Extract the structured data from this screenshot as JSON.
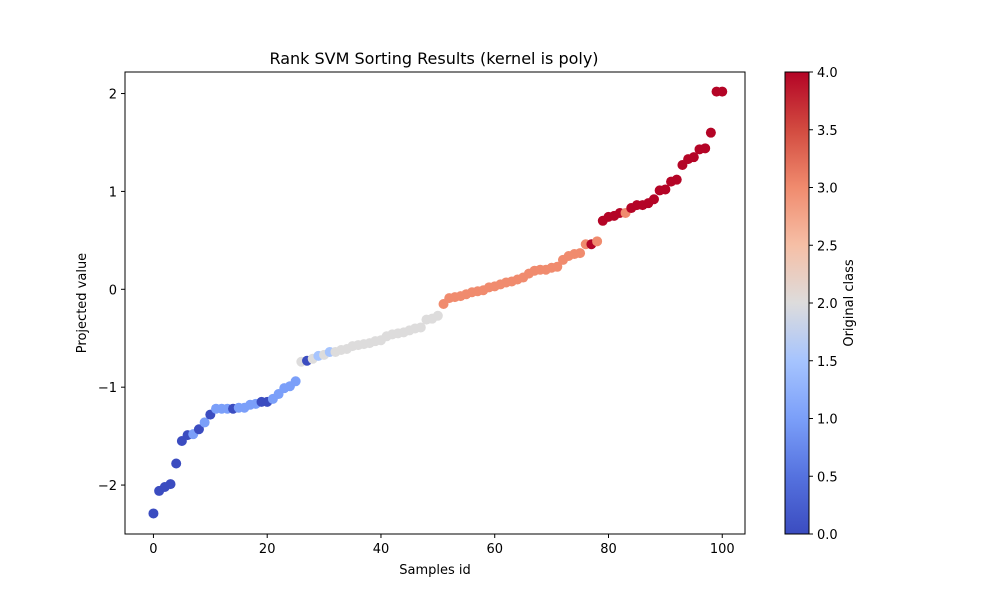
{
  "chart_data": {
    "type": "scatter",
    "title": "Rank SVM Sorting Results (kernel is poly)",
    "xlabel": "Samples id",
    "ylabel": "Projected value",
    "xlim": [
      -5,
      104
    ],
    "ylim": [
      -2.5,
      2.22
    ],
    "xticks": [
      0,
      20,
      40,
      60,
      80,
      100
    ],
    "yticks": [
      -2,
      -1,
      0,
      1,
      2
    ],
    "ytick_labels": [
      "−2",
      "−1",
      "0",
      "1",
      "2"
    ],
    "grid": false,
    "colormap": "coolwarm",
    "colorbar": {
      "label": "Original class",
      "min": 0.0,
      "max": 4.0,
      "ticks": [
        "0.0",
        "0.5",
        "1.0",
        "1.5",
        "2.0",
        "2.5",
        "3.0",
        "3.5",
        "4.0"
      ]
    },
    "points": [
      {
        "x": 0,
        "y": -2.29,
        "c": 0
      },
      {
        "x": 1,
        "y": -2.06,
        "c": 0
      },
      {
        "x": 2,
        "y": -2.02,
        "c": 0
      },
      {
        "x": 3,
        "y": -1.99,
        "c": 0
      },
      {
        "x": 4,
        "y": -1.78,
        "c": 0
      },
      {
        "x": 5,
        "y": -1.55,
        "c": 0
      },
      {
        "x": 6,
        "y": -1.49,
        "c": 0
      },
      {
        "x": 7,
        "y": -1.48,
        "c": 1
      },
      {
        "x": 8,
        "y": -1.43,
        "c": 0
      },
      {
        "x": 9,
        "y": -1.36,
        "c": 1
      },
      {
        "x": 10,
        "y": -1.28,
        "c": 0
      },
      {
        "x": 11,
        "y": -1.22,
        "c": 1
      },
      {
        "x": 12,
        "y": -1.22,
        "c": 1
      },
      {
        "x": 13,
        "y": -1.22,
        "c": 1
      },
      {
        "x": 14,
        "y": -1.22,
        "c": 0
      },
      {
        "x": 15,
        "y": -1.21,
        "c": 1
      },
      {
        "x": 16,
        "y": -1.21,
        "c": 1
      },
      {
        "x": 17,
        "y": -1.18,
        "c": 1
      },
      {
        "x": 18,
        "y": -1.17,
        "c": 1
      },
      {
        "x": 19,
        "y": -1.15,
        "c": 0
      },
      {
        "x": 20,
        "y": -1.15,
        "c": 0
      },
      {
        "x": 21,
        "y": -1.12,
        "c": 1
      },
      {
        "x": 22,
        "y": -1.07,
        "c": 1
      },
      {
        "x": 23,
        "y": -1.01,
        "c": 1
      },
      {
        "x": 24,
        "y": -0.99,
        "c": 1
      },
      {
        "x": 25,
        "y": -0.94,
        "c": 1
      },
      {
        "x": 26,
        "y": -0.74,
        "c": 2
      },
      {
        "x": 27,
        "y": -0.73,
        "c": 0
      },
      {
        "x": 28,
        "y": -0.71,
        "c": 2
      },
      {
        "x": 29,
        "y": -0.68,
        "c": 1.5
      },
      {
        "x": 30,
        "y": -0.67,
        "c": 2
      },
      {
        "x": 31,
        "y": -0.64,
        "c": 1.5
      },
      {
        "x": 32,
        "y": -0.64,
        "c": 2
      },
      {
        "x": 33,
        "y": -0.62,
        "c": 2
      },
      {
        "x": 34,
        "y": -0.61,
        "c": 2
      },
      {
        "x": 35,
        "y": -0.58,
        "c": 2
      },
      {
        "x": 36,
        "y": -0.57,
        "c": 2
      },
      {
        "x": 37,
        "y": -0.56,
        "c": 2
      },
      {
        "x": 38,
        "y": -0.55,
        "c": 2
      },
      {
        "x": 39,
        "y": -0.53,
        "c": 2
      },
      {
        "x": 40,
        "y": -0.52,
        "c": 2
      },
      {
        "x": 41,
        "y": -0.48,
        "c": 2
      },
      {
        "x": 42,
        "y": -0.46,
        "c": 2
      },
      {
        "x": 43,
        "y": -0.45,
        "c": 2
      },
      {
        "x": 44,
        "y": -0.44,
        "c": 2
      },
      {
        "x": 45,
        "y": -0.42,
        "c": 2
      },
      {
        "x": 46,
        "y": -0.4,
        "c": 2
      },
      {
        "x": 47,
        "y": -0.39,
        "c": 2
      },
      {
        "x": 48,
        "y": -0.31,
        "c": 2
      },
      {
        "x": 49,
        "y": -0.3,
        "c": 2
      },
      {
        "x": 50,
        "y": -0.27,
        "c": 2
      },
      {
        "x": 51,
        "y": -0.15,
        "c": 3
      },
      {
        "x": 52,
        "y": -0.09,
        "c": 3
      },
      {
        "x": 53,
        "y": -0.08,
        "c": 3
      },
      {
        "x": 54,
        "y": -0.07,
        "c": 3
      },
      {
        "x": 55,
        "y": -0.05,
        "c": 3
      },
      {
        "x": 56,
        "y": -0.03,
        "c": 3
      },
      {
        "x": 57,
        "y": -0.02,
        "c": 3
      },
      {
        "x": 58,
        "y": -0.01,
        "c": 3
      },
      {
        "x": 59,
        "y": 0.02,
        "c": 3
      },
      {
        "x": 60,
        "y": 0.03,
        "c": 3
      },
      {
        "x": 61,
        "y": 0.05,
        "c": 3
      },
      {
        "x": 62,
        "y": 0.07,
        "c": 3
      },
      {
        "x": 63,
        "y": 0.08,
        "c": 3
      },
      {
        "x": 64,
        "y": 0.1,
        "c": 3
      },
      {
        "x": 65,
        "y": 0.12,
        "c": 3
      },
      {
        "x": 66,
        "y": 0.16,
        "c": 3
      },
      {
        "x": 67,
        "y": 0.19,
        "c": 3
      },
      {
        "x": 68,
        "y": 0.2,
        "c": 3
      },
      {
        "x": 69,
        "y": 0.2,
        "c": 3
      },
      {
        "x": 70,
        "y": 0.22,
        "c": 3
      },
      {
        "x": 71,
        "y": 0.23,
        "c": 3
      },
      {
        "x": 72,
        "y": 0.3,
        "c": 3
      },
      {
        "x": 73,
        "y": 0.34,
        "c": 3
      },
      {
        "x": 74,
        "y": 0.36,
        "c": 3
      },
      {
        "x": 75,
        "y": 0.37,
        "c": 3
      },
      {
        "x": 76,
        "y": 0.46,
        "c": 3
      },
      {
        "x": 77,
        "y": 0.46,
        "c": 4
      },
      {
        "x": 78,
        "y": 0.49,
        "c": 3
      },
      {
        "x": 79,
        "y": 0.7,
        "c": 4
      },
      {
        "x": 80,
        "y": 0.74,
        "c": 4
      },
      {
        "x": 81,
        "y": 0.75,
        "c": 4
      },
      {
        "x": 82,
        "y": 0.78,
        "c": 4
      },
      {
        "x": 83,
        "y": 0.78,
        "c": 3
      },
      {
        "x": 84,
        "y": 0.83,
        "c": 4
      },
      {
        "x": 85,
        "y": 0.86,
        "c": 4
      },
      {
        "x": 86,
        "y": 0.86,
        "c": 4
      },
      {
        "x": 87,
        "y": 0.88,
        "c": 4
      },
      {
        "x": 88,
        "y": 0.92,
        "c": 4
      },
      {
        "x": 89,
        "y": 1.01,
        "c": 4
      },
      {
        "x": 90,
        "y": 1.02,
        "c": 4
      },
      {
        "x": 91,
        "y": 1.1,
        "c": 4
      },
      {
        "x": 92,
        "y": 1.12,
        "c": 4
      },
      {
        "x": 93,
        "y": 1.27,
        "c": 4
      },
      {
        "x": 94,
        "y": 1.33,
        "c": 4
      },
      {
        "x": 95,
        "y": 1.35,
        "c": 4
      },
      {
        "x": 96,
        "y": 1.43,
        "c": 4
      },
      {
        "x": 97,
        "y": 1.44,
        "c": 4
      },
      {
        "x": 98,
        "y": 1.6,
        "c": 4
      },
      {
        "x": 99,
        "y": 2.02,
        "c": 4
      },
      {
        "x": 100,
        "y": 2.02,
        "c": 4
      }
    ]
  }
}
